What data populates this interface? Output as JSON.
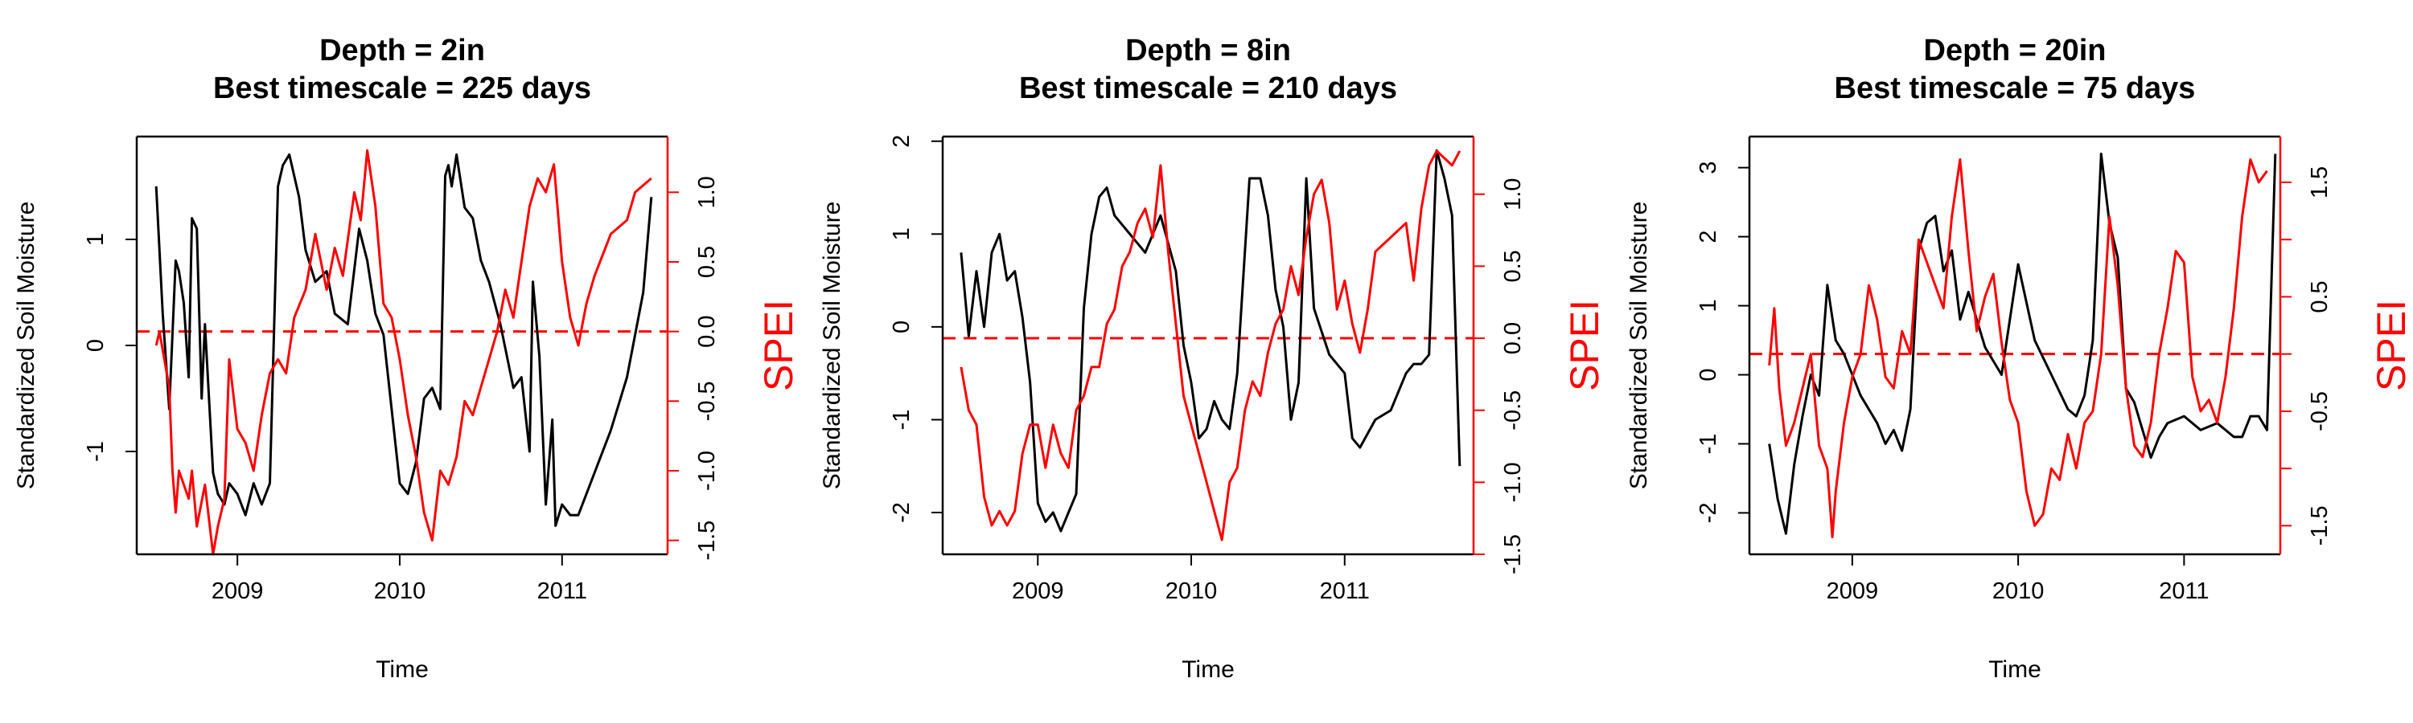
{
  "colors": {
    "soil": "#000000",
    "spei": "#ff0000",
    "reference_line": "#ff0000"
  },
  "chart_data": [
    {
      "type": "line",
      "title": [
        "Depth = 2in",
        "Best timescale = 225 days"
      ],
      "xlabel": "Time",
      "ylabel": "Standardized Soil Moisture",
      "ylabel_right": "SPEI",
      "xlim": [
        2008.38,
        2011.65
      ],
      "ylim": [
        -1.97,
        1.97
      ],
      "ylim_right": [
        -1.6,
        1.4
      ],
      "x_ticks": [
        2009,
        2010,
        2011
      ],
      "x_tick_labels": [
        "2009",
        "2010",
        "2011"
      ],
      "y_ticks": [
        -1,
        0,
        1
      ],
      "y_tick_labels": [
        "-1",
        "0",
        "1"
      ],
      "y_ticks_right": [
        -1.5,
        -1.0,
        -0.5,
        0.0,
        0.5,
        1.0
      ],
      "y_tick_labels_right": [
        "-1.5",
        "-1.0",
        "-0.5",
        "0.0",
        "0.5",
        "1.0"
      ],
      "reference_line_right": 0.0,
      "series": [
        {
          "axis": "left",
          "color": "#000000",
          "x": [
            2008.5,
            2008.54,
            2008.58,
            2008.62,
            2008.64,
            2008.67,
            2008.7,
            2008.72,
            2008.75,
            2008.78,
            2008.8,
            2008.85,
            2008.88,
            2008.92,
            2008.95,
            2009.0,
            2009.05,
            2009.1,
            2009.15,
            2009.2,
            2009.25,
            2009.28,
            2009.32,
            2009.38,
            2009.42,
            2009.48,
            2009.55,
            2009.6,
            2009.68,
            2009.75,
            2009.8,
            2009.85,
            2009.9,
            2009.95,
            2010.0,
            2010.05,
            2010.1,
            2010.15,
            2010.2,
            2010.25,
            2010.28,
            2010.3,
            2010.32,
            2010.35,
            2010.4,
            2010.45,
            2010.5,
            2010.55,
            2010.62,
            2010.7,
            2010.75,
            2010.8,
            2010.82,
            2010.86,
            2010.9,
            2010.94,
            2010.96,
            2011.0,
            2011.05,
            2011.1,
            2011.15,
            2011.2,
            2011.3,
            2011.4,
            2011.45,
            2011.5,
            2011.55
          ],
          "y": [
            1.5,
            0.3,
            -0.6,
            0.8,
            0.7,
            0.4,
            -0.3,
            1.2,
            1.1,
            -0.5,
            0.2,
            -1.2,
            -1.4,
            -1.5,
            -1.3,
            -1.4,
            -1.6,
            -1.3,
            -1.5,
            -1.3,
            1.5,
            1.7,
            1.8,
            1.4,
            0.9,
            0.6,
            0.7,
            0.3,
            0.2,
            1.1,
            0.8,
            0.3,
            0.1,
            -0.6,
            -1.3,
            -1.4,
            -1.1,
            -0.5,
            -0.4,
            -0.6,
            1.6,
            1.7,
            1.5,
            1.8,
            1.3,
            1.2,
            0.8,
            0.6,
            0.2,
            -0.4,
            -0.3,
            -1.0,
            0.6,
            -0.1,
            -1.5,
            -0.7,
            -1.7,
            -1.5,
            -1.6,
            -1.6,
            -1.4,
            -1.2,
            -0.8,
            -0.3,
            0.1,
            0.5,
            1.4
          ]
        },
        {
          "axis": "right",
          "color": "#ff0000",
          "x": [
            2008.5,
            2008.52,
            2008.55,
            2008.58,
            2008.6,
            2008.62,
            2008.64,
            2008.67,
            2008.7,
            2008.72,
            2008.75,
            2008.8,
            2008.85,
            2008.88,
            2008.92,
            2008.95,
            2009.0,
            2009.05,
            2009.1,
            2009.15,
            2009.2,
            2009.25,
            2009.3,
            2009.35,
            2009.42,
            2009.48,
            2009.55,
            2009.6,
            2009.65,
            2009.72,
            2009.76,
            2009.8,
            2009.85,
            2009.9,
            2009.95,
            2010.0,
            2010.05,
            2010.1,
            2010.15,
            2010.2,
            2010.25,
            2010.3,
            2010.35,
            2010.4,
            2010.45,
            2010.5,
            2010.55,
            2010.6,
            2010.65,
            2010.7,
            2010.75,
            2010.8,
            2010.85,
            2010.9,
            2010.95,
            2011.0,
            2011.05,
            2011.1,
            2011.15,
            2011.2,
            2011.3,
            2011.4,
            2011.45,
            2011.55
          ],
          "y": [
            -0.1,
            0.0,
            -0.2,
            -0.4,
            -1.0,
            -1.3,
            -1.0,
            -1.1,
            -1.2,
            -1.0,
            -1.4,
            -1.1,
            -1.6,
            -1.4,
            -1.2,
            -0.2,
            -0.7,
            -0.8,
            -1.0,
            -0.6,
            -0.3,
            -0.2,
            -0.3,
            0.1,
            0.3,
            0.7,
            0.3,
            0.6,
            0.4,
            1.0,
            0.8,
            1.3,
            0.9,
            0.2,
            0.1,
            -0.2,
            -0.6,
            -0.9,
            -1.3,
            -1.5,
            -1.0,
            -1.1,
            -0.9,
            -0.5,
            -0.6,
            -0.4,
            -0.2,
            0.0,
            0.3,
            0.1,
            0.5,
            0.9,
            1.1,
            1.0,
            1.2,
            0.5,
            0.1,
            -0.1,
            0.2,
            0.4,
            0.7,
            0.8,
            1.0,
            1.1
          ]
        }
      ]
    },
    {
      "type": "line",
      "title": [
        "Depth = 8in",
        "Best timescale = 210 days"
      ],
      "xlabel": "Time",
      "ylabel": "Standardized Soil Moisture",
      "ylabel_right": "SPEI",
      "xlim": [
        2008.38,
        2011.84
      ],
      "ylim": [
        -2.45,
        2.05
      ],
      "ylim_right": [
        -1.5,
        1.4
      ],
      "x_ticks": [
        2009,
        2010,
        2011
      ],
      "x_tick_labels": [
        "2009",
        "2010",
        "2011"
      ],
      "y_ticks": [
        -2,
        -1,
        0,
        1,
        2
      ],
      "y_tick_labels": [
        "-2",
        "-1",
        "0",
        "1",
        "2"
      ],
      "y_ticks_right": [
        -1.5,
        -1.0,
        -0.5,
        0.0,
        0.5,
        1.0
      ],
      "y_tick_labels_right": [
        "-1.5",
        "-1.0",
        "-0.5",
        "0.0",
        "0.5",
        "1.0"
      ],
      "reference_line_right": 0.0,
      "series": [
        {
          "axis": "left",
          "color": "#000000",
          "x": [
            2008.5,
            2008.55,
            2008.6,
            2008.65,
            2008.7,
            2008.75,
            2008.8,
            2008.85,
            2008.9,
            2008.95,
            2009.0,
            2009.05,
            2009.1,
            2009.15,
            2009.2,
            2009.25,
            2009.3,
            2009.35,
            2009.4,
            2009.45,
            2009.5,
            2009.6,
            2009.7,
            2009.8,
            2009.9,
            2009.95,
            2010.0,
            2010.05,
            2010.1,
            2010.15,
            2010.2,
            2010.25,
            2010.3,
            2010.38,
            2010.45,
            2010.5,
            2010.55,
            2010.6,
            2010.65,
            2010.7,
            2010.75,
            2010.8,
            2010.9,
            2011.0,
            2011.05,
            2011.1,
            2011.2,
            2011.3,
            2011.4,
            2011.45,
            2011.5,
            2011.55,
            2011.6,
            2011.65,
            2011.7,
            2011.75
          ],
          "y": [
            0.8,
            -0.1,
            0.6,
            0.0,
            0.8,
            1.0,
            0.5,
            0.6,
            0.1,
            -0.6,
            -1.9,
            -2.1,
            -2.0,
            -2.2,
            -2.0,
            -1.8,
            0.2,
            1.0,
            1.4,
            1.5,
            1.2,
            1.0,
            0.8,
            1.2,
            0.6,
            -0.2,
            -0.6,
            -1.2,
            -1.1,
            -0.8,
            -1.0,
            -1.1,
            -0.5,
            1.6,
            1.6,
            1.2,
            0.4,
            0.0,
            -1.0,
            -0.6,
            1.6,
            0.2,
            -0.3,
            -0.5,
            -1.2,
            -1.3,
            -1.0,
            -0.9,
            -0.5,
            -0.4,
            -0.4,
            -0.3,
            1.9,
            1.6,
            1.2,
            -1.5
          ]
        },
        {
          "axis": "right",
          "color": "#ff0000",
          "x": [
            2008.5,
            2008.55,
            2008.6,
            2008.65,
            2008.7,
            2008.75,
            2008.8,
            2008.85,
            2008.9,
            2008.95,
            2009.0,
            2009.05,
            2009.1,
            2009.15,
            2009.2,
            2009.25,
            2009.3,
            2009.35,
            2009.4,
            2009.45,
            2009.5,
            2009.55,
            2009.6,
            2009.65,
            2009.7,
            2009.75,
            2009.8,
            2009.85,
            2009.9,
            2009.95,
            2010.0,
            2010.05,
            2010.1,
            2010.15,
            2010.2,
            2010.25,
            2010.3,
            2010.35,
            2010.4,
            2010.45,
            2010.5,
            2010.55,
            2010.6,
            2010.65,
            2010.7,
            2010.75,
            2010.8,
            2010.85,
            2010.9,
            2010.95,
            2011.0,
            2011.05,
            2011.1,
            2011.15,
            2011.2,
            2011.3,
            2011.4,
            2011.45,
            2011.5,
            2011.55,
            2011.6,
            2011.7,
            2011.75
          ],
          "y": [
            -0.2,
            -0.5,
            -0.6,
            -1.1,
            -1.3,
            -1.2,
            -1.3,
            -1.2,
            -0.8,
            -0.6,
            -0.6,
            -0.9,
            -0.6,
            -0.8,
            -0.9,
            -0.5,
            -0.4,
            -0.2,
            -0.2,
            0.1,
            0.2,
            0.5,
            0.6,
            0.8,
            0.9,
            0.7,
            1.2,
            0.6,
            0.1,
            -0.4,
            -0.6,
            -0.8,
            -1.0,
            -1.2,
            -1.4,
            -1.0,
            -0.9,
            -0.5,
            -0.3,
            -0.4,
            -0.1,
            0.1,
            0.2,
            0.5,
            0.3,
            0.7,
            1.0,
            1.1,
            0.8,
            0.2,
            0.4,
            0.1,
            -0.1,
            0.2,
            0.6,
            0.7,
            0.8,
            0.4,
            0.9,
            1.2,
            1.3,
            1.2,
            1.3
          ]
        }
      ]
    },
    {
      "type": "line",
      "title": [
        "Depth = 20in",
        "Best timescale = 75 days"
      ],
      "xlabel": "Time",
      "ylabel": "Standardized Soil Moisture",
      "ylabel_right": "SPEI",
      "xlim": [
        2008.38,
        2011.58
      ],
      "ylim": [
        -2.6,
        3.45
      ],
      "ylim_right": [
        -1.75,
        1.9
      ],
      "x_ticks": [
        2009,
        2010,
        2011
      ],
      "x_tick_labels": [
        "2009",
        "2010",
        "2011"
      ],
      "y_ticks": [
        -2,
        -1,
        0,
        1,
        2,
        3
      ],
      "y_tick_labels": [
        "-2",
        "-1",
        "0",
        "1",
        "2",
        "3"
      ],
      "y_ticks_right": [
        -1.5,
        -1.0,
        -0.5,
        0.0,
        0.5,
        1.0,
        1.5
      ],
      "y_tick_labels_right": [
        "-1.5",
        "",
        "-0.5",
        "",
        "0.5",
        "",
        "1.5"
      ],
      "reference_line_right": 0.0,
      "series": [
        {
          "axis": "left",
          "color": "#000000",
          "x": [
            2008.5,
            2008.55,
            2008.6,
            2008.65,
            2008.7,
            2008.75,
            2008.8,
            2008.85,
            2008.9,
            2008.95,
            2009.0,
            2009.05,
            2009.1,
            2009.15,
            2009.2,
            2009.25,
            2009.3,
            2009.35,
            2009.4,
            2009.45,
            2009.5,
            2009.55,
            2009.6,
            2009.65,
            2009.7,
            2009.8,
            2009.9,
            2010.0,
            2010.1,
            2010.2,
            2010.3,
            2010.35,
            2010.4,
            2010.45,
            2010.5,
            2010.55,
            2010.6,
            2010.65,
            2010.7,
            2010.75,
            2010.8,
            2010.85,
            2010.9,
            2011.0,
            2011.1,
            2011.2,
            2011.3,
            2011.35,
            2011.4,
            2011.45,
            2011.5,
            2011.55
          ],
          "y": [
            -1.0,
            -1.8,
            -2.3,
            -1.3,
            -0.6,
            0.0,
            -0.3,
            1.3,
            0.5,
            0.3,
            0.0,
            -0.3,
            -0.5,
            -0.7,
            -1.0,
            -0.8,
            -1.1,
            -0.5,
            1.8,
            2.2,
            2.3,
            1.5,
            1.8,
            0.8,
            1.2,
            0.4,
            0.0,
            1.6,
            0.5,
            0.0,
            -0.5,
            -0.6,
            -0.3,
            0.5,
            3.2,
            2.2,
            1.7,
            -0.2,
            -0.4,
            -0.8,
            -1.2,
            -0.9,
            -0.7,
            -0.6,
            -0.8,
            -0.7,
            -0.9,
            -0.9,
            -0.6,
            -0.6,
            -0.8,
            3.2
          ]
        },
        {
          "axis": "right",
          "color": "#ff0000",
          "x": [
            2008.5,
            2008.53,
            2008.56,
            2008.6,
            2008.65,
            2008.7,
            2008.75,
            2008.8,
            2008.85,
            2008.88,
            2008.9,
            2008.95,
            2009.0,
            2009.05,
            2009.1,
            2009.15,
            2009.2,
            2009.25,
            2009.3,
            2009.35,
            2009.4,
            2009.45,
            2009.5,
            2009.55,
            2009.6,
            2009.65,
            2009.7,
            2009.75,
            2009.8,
            2009.85,
            2009.9,
            2009.95,
            2010.0,
            2010.05,
            2010.1,
            2010.15,
            2010.2,
            2010.25,
            2010.3,
            2010.35,
            2010.4,
            2010.45,
            2010.5,
            2010.55,
            2010.6,
            2010.65,
            2010.7,
            2010.75,
            2010.8,
            2010.85,
            2010.9,
            2010.95,
            2011.0,
            2011.05,
            2011.1,
            2011.15,
            2011.2,
            2011.25,
            2011.3,
            2011.35,
            2011.4,
            2011.45,
            2011.5
          ],
          "y": [
            -0.1,
            0.4,
            -0.3,
            -0.8,
            -0.6,
            -0.3,
            0.0,
            -0.8,
            -1.0,
            -1.6,
            -1.2,
            -0.6,
            -0.2,
            0.0,
            0.6,
            0.3,
            -0.2,
            -0.3,
            0.2,
            0.0,
            1.0,
            0.8,
            0.6,
            0.4,
            1.2,
            1.7,
            0.9,
            0.2,
            0.5,
            0.7,
            0.1,
            -0.4,
            -0.6,
            -1.2,
            -1.5,
            -1.4,
            -1.0,
            -1.1,
            -0.7,
            -1.0,
            -0.6,
            -0.5,
            0.0,
            1.2,
            0.6,
            -0.3,
            -0.8,
            -0.9,
            -0.6,
            0.0,
            0.4,
            0.9,
            0.8,
            -0.2,
            -0.5,
            -0.4,
            -0.6,
            -0.2,
            0.4,
            1.2,
            1.7,
            1.5,
            1.6
          ]
        }
      ]
    }
  ]
}
